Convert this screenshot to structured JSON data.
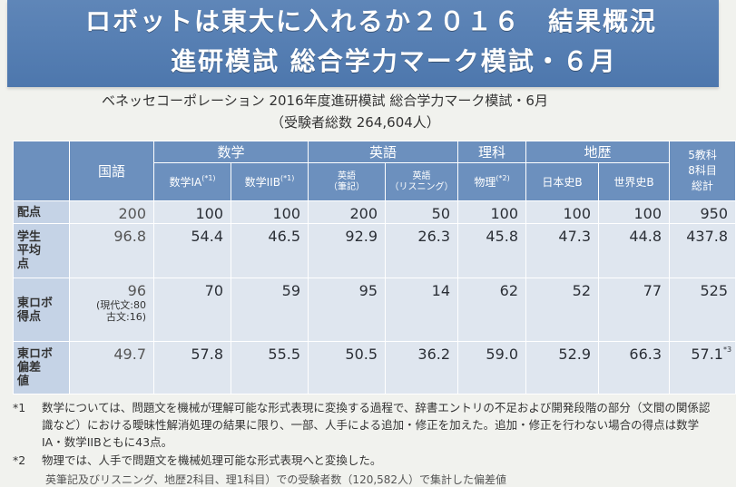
{
  "banner": {
    "line1": "ロボットは東大に入れるか２０１６　結果概況",
    "line2": "進研模試 総合学力マーク模試・６月"
  },
  "subtitle": "ベネッセコーポレーション 2016年度進研模試 総合学力マーク模試・6月",
  "examinees": "（受験者総数 264,604人）",
  "table": {
    "groups": {
      "kokugo": "国語",
      "math": "数学",
      "english": "英語",
      "science": "理科",
      "geohist": "地歴",
      "total": "5教科\n8科目\n総計"
    },
    "subjects": {
      "math1a": "数学IA",
      "math1a_note": "(*1)",
      "math2b": "数学IIB",
      "math2b_note": "(*1)",
      "eng_written_1": "英語",
      "eng_written_2": "（筆記）",
      "eng_listen_1": "英語",
      "eng_listen_2": "（リスニング）",
      "physics": "物理",
      "physics_note": "(*2)",
      "jhist": "日本史B",
      "whist": "世界史B"
    },
    "rows": {
      "points_label": "配点",
      "points": [
        "200",
        "100",
        "100",
        "200",
        "50",
        "100",
        "100",
        "100",
        "950"
      ],
      "avg_label": "学生\n平均\n点",
      "avg": [
        "96.8",
        "54.4",
        "46.5",
        "92.9",
        "26.3",
        "45.8",
        "47.3",
        "44.8",
        "437.8"
      ],
      "robot_label": "東ロボ\n得点",
      "robot": [
        "96",
        "70",
        "59",
        "95",
        "14",
        "62",
        "52",
        "77",
        "525"
      ],
      "robot_kokugo_detail_1": "(現代文:80",
      "robot_kokugo_detail_2": "古文:16)",
      "dev_label": "東ロボ\n偏差\n値",
      "dev": [
        "49.7",
        "57.8",
        "55.5",
        "50.5",
        "36.2",
        "59.0",
        "52.9",
        "66.3",
        "57.1"
      ],
      "dev_total_note": "*3"
    }
  },
  "notes": {
    "n1_mark": "*1",
    "n1_text": "数学については、問題文を機械が理解可能な形式表現に変換する過程で、辞書エントリの不足および開発段階の部分（文間の関係認識など）における曖昧性解消処理の結果に限り、一部、人手による追加・修正を加えた。追加・修正を行わない場合の得点は数学IA・数学IIBともに43点。",
    "n2_mark": "*2",
    "n2_text": "物理では、人手で問題文を機械処理可能な形式表現へと変換した。",
    "n3_text": "英筆記及びリスニング、地歴2科目、理1科目）での受験者数（120,582人）で集計した偏差値"
  },
  "colors": {
    "banner": "#5a82b5",
    "header": "#6c90be",
    "rowlabel": "#c5d3e6",
    "cell": "#dfe6ef"
  }
}
